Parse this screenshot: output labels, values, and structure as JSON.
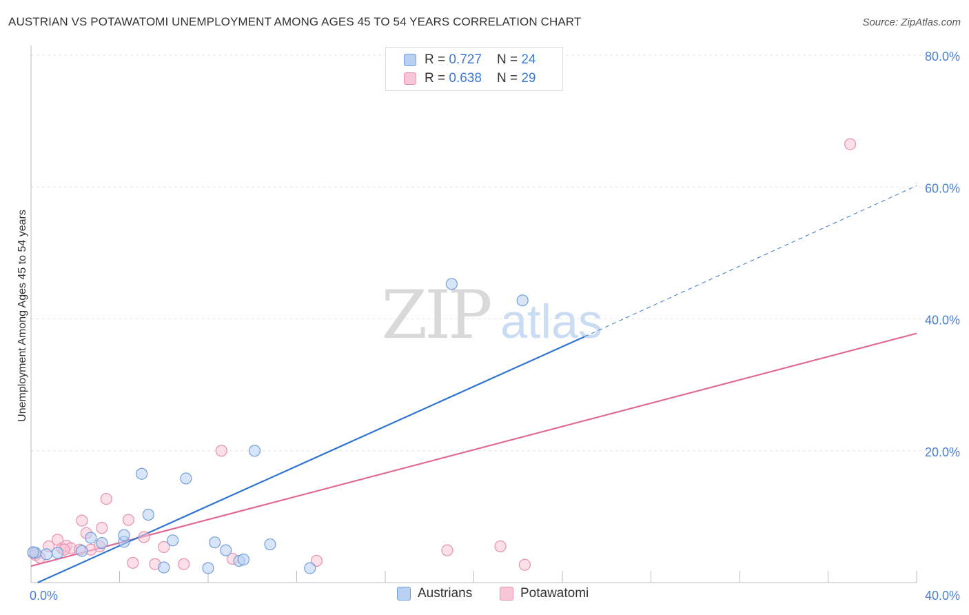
{
  "header": {
    "title": "AUSTRIAN VS POTAWATOMI UNEMPLOYMENT AMONG AGES 45 TO 54 YEARS CORRELATION CHART",
    "source": "Source: ZipAtlas.com"
  },
  "watermark": {
    "zip": "ZIP",
    "atlas": "atlas"
  },
  "legend": {
    "rows": [
      {
        "r_label": "R =",
        "r_value": "0.727",
        "n_label": "N =",
        "n_value": "24"
      },
      {
        "r_label": "R =",
        "r_value": "0.638",
        "n_label": "N =",
        "n_value": "29"
      }
    ]
  },
  "bottom_legend": {
    "austrians": "Austrians",
    "potawatomi": "Potawatomi"
  },
  "colors": {
    "austrians_fill": "#b8d0f2",
    "austrians_stroke": "#6f9fdc",
    "austrians_line": "#2f74d0",
    "potawatomi_fill": "#f8c6d6",
    "potawatomi_stroke": "#e78fae",
    "potawatomi_line": "#e06a96",
    "tick_text": "#4a7fcf",
    "grid": "#e2e2e2"
  },
  "chart_data": {
    "type": "scatter",
    "title": "AUSTRIAN VS POTAWATOMI UNEMPLOYMENT AMONG AGES 45 TO 54 YEARS CORRELATION CHART",
    "xlabel": "",
    "ylabel": "Unemployment Among Ages 45 to 54 years",
    "xlim": [
      0,
      40
    ],
    "ylim": [
      0,
      80
    ],
    "x_tick_labels": [
      {
        "value": 0,
        "label": "0.0%"
      },
      {
        "value": 40,
        "label": "40.0%"
      }
    ],
    "y_tick_labels": [
      {
        "value": 20,
        "label": "20.0%"
      },
      {
        "value": 40,
        "label": "40.0%"
      },
      {
        "value": 60,
        "label": "60.0%"
      },
      {
        "value": 80,
        "label": "80.0%"
      }
    ],
    "series": [
      {
        "name": "Austrians",
        "R": 0.727,
        "N": 24,
        "points": [
          [
            0.2,
            4.5
          ],
          [
            0.7,
            4.3
          ],
          [
            1.2,
            4.5
          ],
          [
            2.3,
            4.8
          ],
          [
            2.7,
            6.8
          ],
          [
            3.2,
            6.0
          ],
          [
            4.2,
            6.2
          ],
          [
            4.2,
            7.2
          ],
          [
            5.0,
            16.5
          ],
          [
            5.3,
            10.3
          ],
          [
            6.0,
            2.3
          ],
          [
            6.4,
            6.4
          ],
          [
            7.0,
            15.8
          ],
          [
            8.0,
            2.2
          ],
          [
            8.3,
            6.1
          ],
          [
            8.8,
            4.9
          ],
          [
            9.4,
            3.3
          ],
          [
            9.6,
            3.5
          ],
          [
            10.1,
            20.0
          ],
          [
            10.8,
            5.8
          ],
          [
            12.6,
            2.2
          ],
          [
            19.0,
            45.3
          ],
          [
            22.2,
            42.8
          ],
          [
            0.1,
            4.6
          ]
        ],
        "trend": {
          "x0": 0.3,
          "y0": 0,
          "x1": 25.0,
          "y1": 37.3,
          "dash_x1": 40.0,
          "dash_y1": 60.2
        }
      },
      {
        "name": "Potawatomi",
        "R": 0.638,
        "N": 29,
        "points": [
          [
            0.2,
            4.2
          ],
          [
            0.4,
            3.8
          ],
          [
            0.8,
            5.5
          ],
          [
            1.2,
            6.5
          ],
          [
            1.4,
            5.2
          ],
          [
            1.6,
            5.6
          ],
          [
            1.8,
            5.2
          ],
          [
            2.2,
            5.0
          ],
          [
            2.3,
            9.4
          ],
          [
            2.5,
            7.5
          ],
          [
            2.7,
            5.0
          ],
          [
            3.1,
            5.5
          ],
          [
            3.2,
            8.3
          ],
          [
            3.4,
            12.7
          ],
          [
            4.4,
            9.5
          ],
          [
            4.6,
            3.0
          ],
          [
            5.1,
            6.9
          ],
          [
            5.6,
            2.8
          ],
          [
            6.0,
            5.4
          ],
          [
            6.9,
            2.8
          ],
          [
            8.6,
            20.0
          ],
          [
            9.1,
            3.6
          ],
          [
            12.9,
            3.3
          ],
          [
            18.8,
            4.9
          ],
          [
            21.2,
            5.5
          ],
          [
            22.3,
            2.7
          ],
          [
            37.0,
            66.5
          ],
          [
            0.1,
            4.5
          ],
          [
            1.5,
            5.0
          ]
        ],
        "trend": {
          "x0": 0,
          "y0": 2.5,
          "x1": 40.0,
          "y1": 37.8
        }
      }
    ]
  }
}
